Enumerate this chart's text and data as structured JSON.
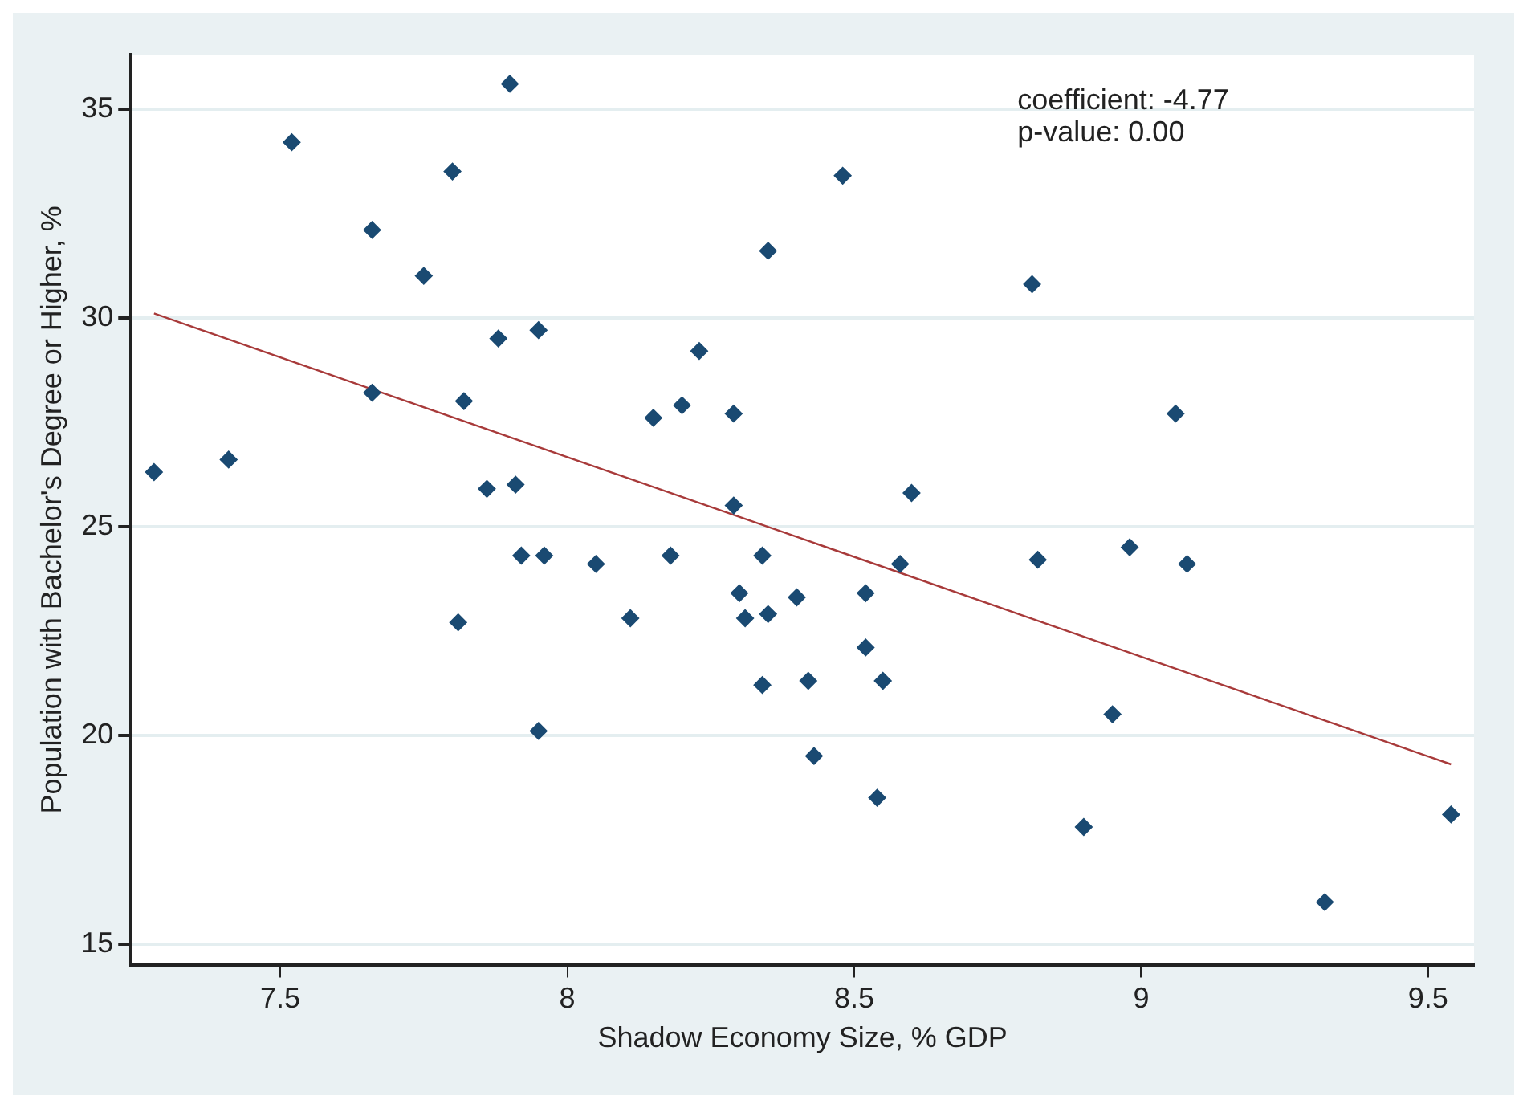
{
  "chart_data": {
    "type": "scatter",
    "xlabel": "Shadow Economy Size, % GDP",
    "ylabel": "Population with Bachelor's Degree or Higher, %",
    "annotations": [
      "coefficient: -4.77",
      "p-value: 0.00"
    ],
    "xlim": [
      7.24,
      9.58
    ],
    "xticks": [
      {
        "value": 7.5,
        "label": "7.5"
      },
      {
        "value": 8,
        "label": "8"
      },
      {
        "value": 8.5,
        "label": "8.5"
      },
      {
        "value": 9,
        "label": "9"
      },
      {
        "value": 9.5,
        "label": "9.5"
      }
    ],
    "ylim": [
      14.5,
      36.3
    ],
    "yticks": [
      15,
      20,
      25,
      30,
      35
    ],
    "grid": "y",
    "legend": false,
    "marker": "diamond",
    "series": [
      {
        "color": "#1a4a72",
        "x": [
          7.28,
          7.41,
          7.52,
          7.66,
          7.75,
          7.8,
          7.9,
          7.66,
          7.82,
          7.88,
          7.95,
          7.86,
          7.91,
          8.48,
          8.35,
          8.81,
          8.23,
          8.15,
          8.2,
          8.29,
          8.29,
          8.6,
          9.06,
          7.92,
          7.96,
          8.05,
          7.81,
          7.95,
          8.18,
          8.11,
          8.34,
          8.3,
          8.31,
          8.35,
          8.4,
          8.52,
          8.52,
          8.58,
          8.34,
          8.42,
          8.55,
          8.43,
          8.54,
          8.82,
          8.98,
          9.08,
          8.95,
          8.9,
          9.32,
          9.54
        ],
        "values": [
          26.3,
          26.6,
          34.2,
          32.1,
          31.0,
          33.5,
          35.6,
          28.2,
          28.0,
          29.5,
          29.7,
          25.9,
          26.0,
          33.4,
          31.6,
          30.8,
          29.2,
          27.6,
          27.9,
          27.7,
          25.5,
          25.8,
          27.7,
          24.3,
          24.3,
          24.1,
          22.7,
          20.1,
          24.3,
          22.8,
          24.3,
          23.4,
          22.8,
          22.9,
          23.3,
          23.4,
          22.1,
          24.1,
          21.2,
          21.3,
          21.3,
          19.5,
          18.5,
          24.2,
          24.5,
          24.1,
          20.5,
          17.8,
          16.0,
          18.1
        ]
      },
      {
        "type": "line",
        "color": "#a83a3a",
        "marker": "none",
        "x": [
          7.28,
          9.54
        ],
        "values": [
          30.1,
          19.3
        ]
      }
    ]
  }
}
